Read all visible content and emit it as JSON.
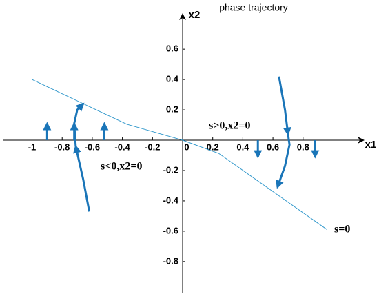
{
  "chart_data": {
    "type": "line",
    "title": "phase trajectory",
    "x_label": "x1",
    "y_label": "x2",
    "annotations": [
      "s>0,x2=0",
      "s<0,x2=0",
      "s=0"
    ],
    "xlim": [
      -1.19,
      1.19
    ],
    "ylim": [
      -1.01,
      0.81
    ],
    "xticks": [
      -1,
      -0.8,
      -0.6,
      -0.4,
      -0.2,
      0,
      0.2,
      0.4,
      0.6,
      0.8
    ],
    "yticks": [
      0.6,
      0.4,
      0.2,
      -0.2,
      -0.4,
      -0.6,
      -0.8
    ],
    "series": [
      {
        "color": "#3399cc",
        "arrow": false,
        "x": [
          -1,
          -0.37,
          0,
          0.24,
          0.96
        ],
        "y": [
          0.4,
          0.105,
          0,
          -0.087,
          -0.59
        ]
      },
      {
        "color": "#1a75b8",
        "arrow": true,
        "x": [
          -0.62,
          -0.66,
          -0.71
        ],
        "y": [
          -0.47,
          -0.26,
          -0.04
        ]
      },
      {
        "color": "#1a75b8",
        "arrow": true,
        "x": [
          -0.71,
          -0.72,
          -0.7,
          -0.66
        ],
        "y": [
          -0.04,
          0.11,
          0.2,
          0.24
        ]
      },
      {
        "color": "#1a75b8",
        "arrow": true,
        "x": [
          0.64,
          0.68,
          0.7
        ],
        "y": [
          0.42,
          0.2,
          0.04
        ]
      },
      {
        "color": "#1a75b8",
        "arrow": true,
        "x": [
          0.7,
          0.71,
          0.68,
          0.63
        ],
        "y": [
          0.04,
          -0.03,
          -0.17,
          -0.31
        ]
      },
      {
        "color": "#1a75b8",
        "arrow": true,
        "x": [
          -0.9,
          -0.9
        ],
        "y": [
          0,
          0.11
        ]
      },
      {
        "color": "#1a75b8",
        "arrow": true,
        "x": [
          -0.72,
          -0.72
        ],
        "y": [
          0,
          0.11
        ]
      },
      {
        "color": "#1a75b8",
        "arrow": true,
        "x": [
          -0.52,
          -0.52
        ],
        "y": [
          0,
          0.11
        ]
      },
      {
        "color": "#1a75b8",
        "arrow": true,
        "x": [
          0.5,
          0.5
        ],
        "y": [
          0,
          -0.11
        ]
      },
      {
        "color": "#1a75b8",
        "arrow": true,
        "x": [
          0.88,
          0.88
        ],
        "y": [
          0,
          -0.11
        ]
      }
    ]
  }
}
